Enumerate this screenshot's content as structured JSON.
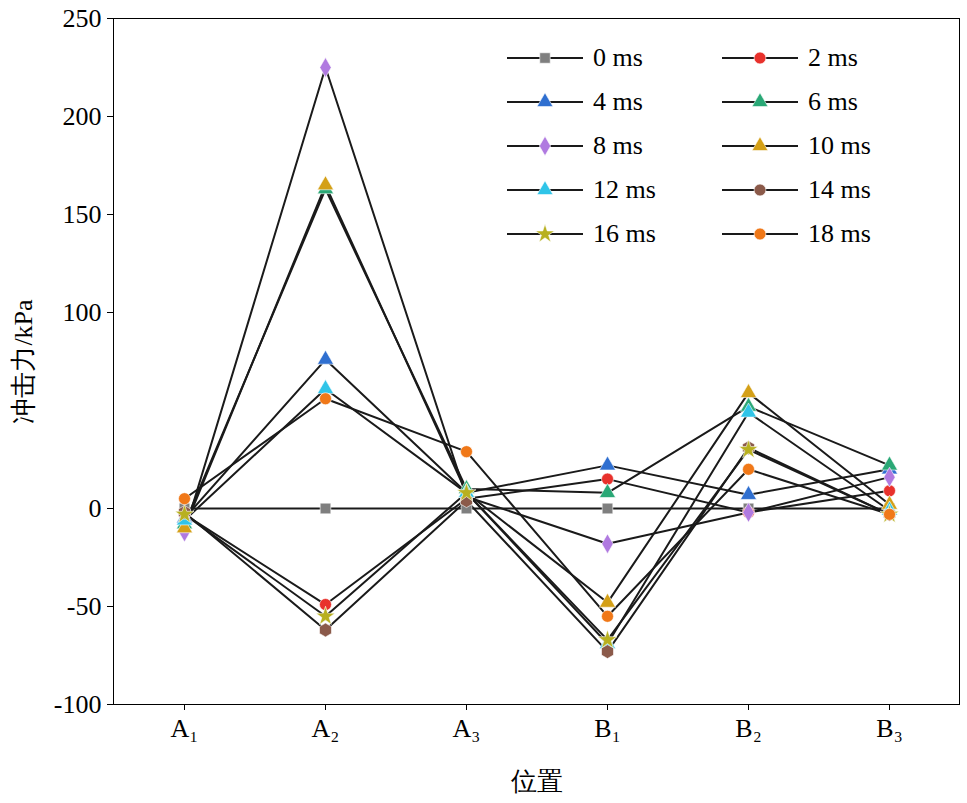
{
  "chart_data": {
    "type": "line",
    "xlabel": "位置",
    "ylabel": "冲击力/kPa",
    "categories": [
      "A₁",
      "A₂",
      "A₃",
      "B₁",
      "B₂",
      "B₃"
    ],
    "ylim": [
      -100,
      250
    ],
    "yticks": [
      -100,
      -50,
      0,
      100,
      150,
      200,
      250
    ],
    "legend": "upper right",
    "series": [
      {
        "name": "0 ms",
        "color": "#7f7f7f",
        "marker": "square",
        "values": [
          0,
          0,
          0,
          0,
          0,
          0
        ]
      },
      {
        "name": "2 ms",
        "color": "#e8312c",
        "marker": "circle",
        "values": [
          -3,
          -49,
          5,
          15,
          -2,
          9
        ]
      },
      {
        "name": "4 ms",
        "color": "#2f6fd0",
        "marker": "triangle",
        "values": [
          -5,
          76,
          8,
          22,
          7,
          20
        ]
      },
      {
        "name": "6 ms",
        "color": "#2aa876",
        "marker": "triangle",
        "values": [
          -8,
          163,
          10,
          8,
          52,
          22
        ]
      },
      {
        "name": "8 ms",
        "color": "#b07ae0",
        "marker": "diamond",
        "values": [
          -12,
          225,
          6,
          -18,
          -2,
          16
        ]
      },
      {
        "name": "10 ms",
        "color": "#d4a017",
        "marker": "triangle",
        "values": [
          -10,
          165,
          8,
          -48,
          59,
          2
        ]
      },
      {
        "name": "12 ms",
        "color": "#2fc4e8",
        "marker": "triangle",
        "values": [
          -6,
          61,
          8,
          -69,
          49,
          -1
        ]
      },
      {
        "name": "14 ms",
        "color": "#8b5a4a",
        "marker": "hexagon",
        "values": [
          -2,
          -62,
          4,
          -73,
          31,
          -3
        ]
      },
      {
        "name": "16 ms",
        "color": "#b8b020",
        "marker": "star",
        "values": [
          -3,
          -55,
          8,
          -67,
          30,
          -3
        ]
      },
      {
        "name": "18 ms",
        "color": "#f07818",
        "marker": "circle",
        "values": [
          5,
          56,
          29,
          -55,
          20,
          -3
        ]
      }
    ]
  }
}
